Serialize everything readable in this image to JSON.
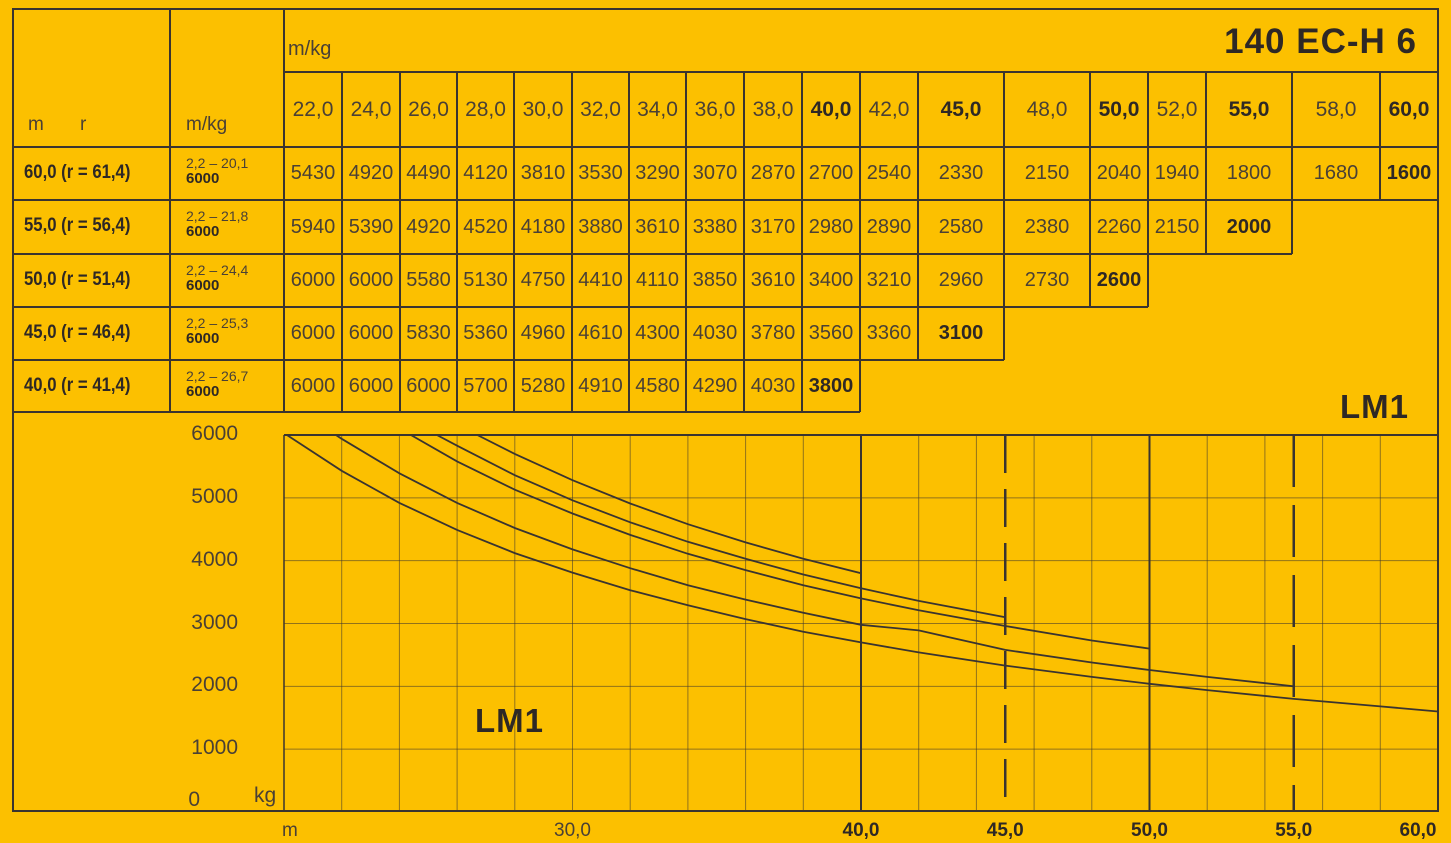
{
  "title": "140 EC-H 6",
  "lm_label_top": "LM1",
  "lm_label_chart": "LM1",
  "header": {
    "mkg_top": "m/kg",
    "col_m": "m",
    "col_r": "r",
    "col_mkg": "m/kg"
  },
  "columns": [
    "22,0",
    "24,0",
    "26,0",
    "28,0",
    "30,0",
    "32,0",
    "34,0",
    "36,0",
    "38,0",
    "40,0",
    "42,0",
    "45,0",
    "48,0",
    "50,0",
    "52,0",
    "55,0",
    "58,0",
    "60,0"
  ],
  "bold_columns": [
    "40,0",
    "45,0",
    "50,0",
    "55,0",
    "60,0"
  ],
  "rows": [
    {
      "label": "60,0  (r = 61,4)",
      "range": "2,2 – 20,1",
      "max": "6000",
      "values": [
        "5430",
        "4920",
        "4490",
        "4120",
        "3810",
        "3530",
        "3290",
        "3070",
        "2870",
        "2700",
        "2540",
        "2330",
        "2150",
        "2040",
        "1940",
        "1800",
        "1680",
        "1600"
      ]
    },
    {
      "label": "55,0  (r = 56,4)",
      "range": "2,2 – 21,8",
      "max": "6000",
      "values": [
        "5940",
        "5390",
        "4920",
        "4520",
        "4180",
        "3880",
        "3610",
        "3380",
        "3170",
        "2980",
        "2890",
        "2580",
        "2380",
        "2260",
        "2150",
        "2000"
      ]
    },
    {
      "label": "50,0  (r = 51,4)",
      "range": "2,2 – 24,4",
      "max": "6000",
      "values": [
        "6000",
        "6000",
        "5580",
        "5130",
        "4750",
        "4410",
        "4110",
        "3850",
        "3610",
        "3400",
        "3210",
        "2960",
        "2730",
        "2600"
      ]
    },
    {
      "label": "45,0  (r = 46,4)",
      "range": "2,2 – 25,3",
      "max": "6000",
      "values": [
        "6000",
        "6000",
        "5830",
        "5360",
        "4960",
        "4610",
        "4300",
        "4030",
        "3780",
        "3560",
        "3360",
        "3100"
      ]
    },
    {
      "label": "40,0  (r = 41,4)",
      "range": "2,2 – 26,7",
      "max": "6000",
      "values": [
        "6000",
        "6000",
        "6000",
        "5700",
        "5280",
        "4910",
        "4580",
        "4290",
        "4030",
        "3800"
      ]
    }
  ],
  "chart_data": {
    "type": "line",
    "xlabel": "m",
    "ylabel": "kg",
    "xlim": [
      20,
      60
    ],
    "ylim": [
      0,
      6000
    ],
    "y_ticks": [
      "6000",
      "5000",
      "4000",
      "3000",
      "2000",
      "1000",
      "0"
    ],
    "x_ticks": [
      {
        "value": 30,
        "label": "30,0",
        "bold": false
      },
      {
        "value": 40,
        "label": "40,0",
        "bold": true
      },
      {
        "value": 45,
        "label": "45,0",
        "bold": true
      },
      {
        "value": 50,
        "label": "50,0",
        "bold": true
      },
      {
        "value": 55,
        "label": "55,0",
        "bold": true
      },
      {
        "value": 60,
        "label": "60,0",
        "bold": true
      }
    ],
    "series": [
      {
        "name": "60,0",
        "x": [
          20.1,
          22,
          24,
          26,
          28,
          30,
          32,
          34,
          36,
          38,
          40,
          42,
          45,
          48,
          50,
          52,
          55,
          58,
          60
        ],
        "values": [
          6000,
          5430,
          4920,
          4490,
          4120,
          3810,
          3530,
          3290,
          3070,
          2870,
          2700,
          2540,
          2330,
          2150,
          2040,
          1940,
          1800,
          1680,
          1600
        ]
      },
      {
        "name": "55,0",
        "x": [
          21.8,
          22,
          24,
          26,
          28,
          30,
          32,
          34,
          36,
          38,
          40,
          42,
          45,
          48,
          50,
          52,
          55
        ],
        "values": [
          6000,
          5940,
          5390,
          4920,
          4520,
          4180,
          3880,
          3610,
          3380,
          3170,
          2980,
          2890,
          2580,
          2380,
          2260,
          2150,
          2000
        ]
      },
      {
        "name": "50,0",
        "x": [
          24.4,
          26,
          28,
          30,
          32,
          34,
          36,
          38,
          40,
          42,
          45,
          48,
          50
        ],
        "values": [
          6000,
          5580,
          5130,
          4750,
          4410,
          4110,
          3850,
          3610,
          3400,
          3210,
          2960,
          2730,
          2600
        ]
      },
      {
        "name": "45,0",
        "x": [
          25.3,
          26,
          28,
          30,
          32,
          34,
          36,
          38,
          40,
          42,
          45
        ],
        "values": [
          6000,
          5830,
          5360,
          4960,
          4610,
          4300,
          4030,
          3780,
          3560,
          3360,
          3100
        ]
      },
      {
        "name": "40,0",
        "x": [
          26.7,
          28,
          30,
          32,
          34,
          36,
          38,
          40
        ],
        "values": [
          6000,
          5700,
          5280,
          4910,
          4580,
          4290,
          4030,
          3800
        ]
      }
    ]
  }
}
